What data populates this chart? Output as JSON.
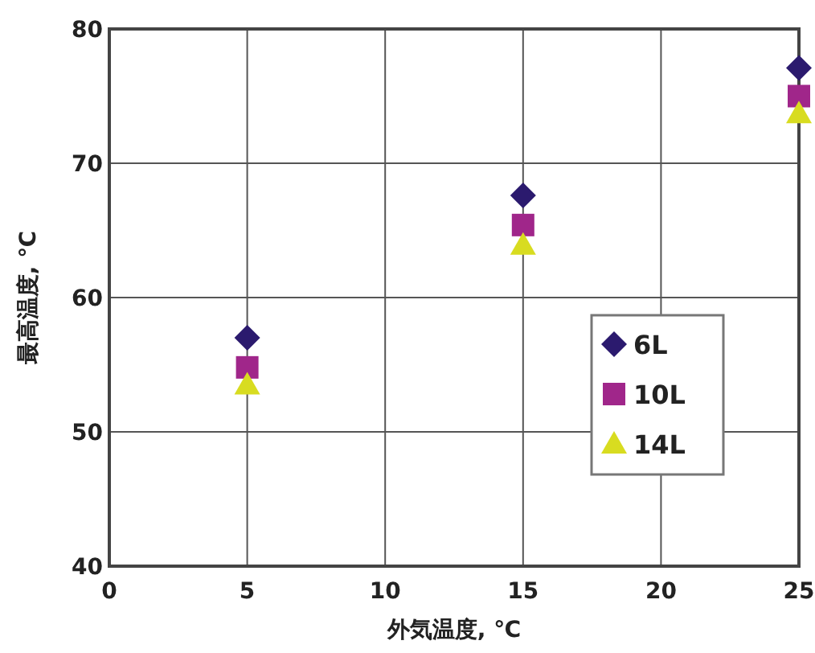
{
  "chart_data": {
    "type": "scatter",
    "xlabel": "外気温度, ℃",
    "ylabel": "最高温度, ℃",
    "x": [
      5,
      15,
      25
    ],
    "series": [
      {
        "name": "6L",
        "color": "#2b1a6e",
        "marker": "diamond",
        "values": [
          57.0,
          67.6,
          77.1
        ]
      },
      {
        "name": "10L",
        "color": "#a0268a",
        "marker": "square",
        "values": [
          54.8,
          65.4,
          75.0
        ]
      },
      {
        "name": "14L",
        "color": "#d8dc20",
        "marker": "triangle",
        "values": [
          53.5,
          63.9,
          73.7
        ]
      }
    ],
    "xlim": [
      0,
      25
    ],
    "ylim": [
      40,
      80
    ],
    "xticks": [
      0,
      5,
      10,
      15,
      20,
      25
    ],
    "yticks": [
      40,
      50,
      60,
      70,
      80
    ],
    "grid": true,
    "legend": "right"
  }
}
